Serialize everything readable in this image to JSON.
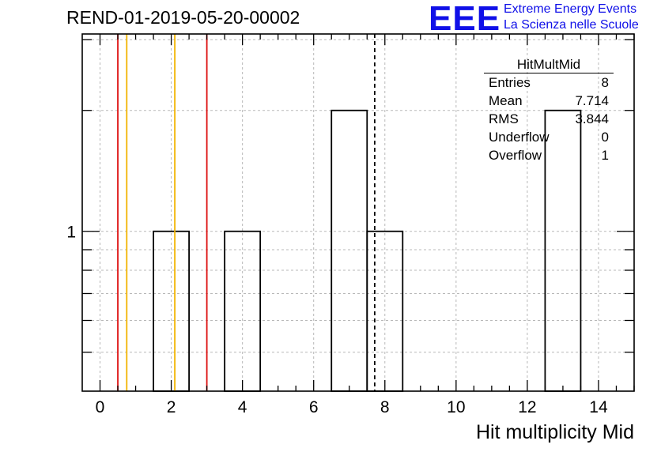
{
  "title": "REND-01-2019-05-20-00002",
  "logo": {
    "mark": "EEE",
    "line1": "Extreme Energy Events",
    "line2": "La Scienza nelle Scuole",
    "color": "#1010e8"
  },
  "stats_box": {
    "title": "HitMultMid",
    "rows": [
      {
        "label": "Entries",
        "value": "8"
      },
      {
        "label": "Mean",
        "value": "7.714"
      },
      {
        "label": "RMS",
        "value": "3.844"
      },
      {
        "label": "Underflow",
        "value": "0"
      },
      {
        "label": "Overflow",
        "value": "1"
      }
    ]
  },
  "chart_data": {
    "type": "bar",
    "histogram": true,
    "xlabel": "Hit multiplicity Mid",
    "ylabel": "",
    "xlim": [
      -0.5,
      15
    ],
    "ylim": [
      0.4,
      3.1
    ],
    "yscale": "log",
    "grid": true,
    "x_ticks": [
      0,
      2,
      4,
      6,
      8,
      10,
      12,
      14
    ],
    "y_tick_labels": [
      {
        "value": 1,
        "label": "1"
      }
    ],
    "bins": [
      {
        "x0": 1.5,
        "x1": 2.5,
        "value": 1
      },
      {
        "x0": 3.5,
        "x1": 4.5,
        "value": 1
      },
      {
        "x0": 6.5,
        "x1": 7.5,
        "value": 2
      },
      {
        "x0": 7.5,
        "x1": 8.5,
        "value": 1
      },
      {
        "x0": 12.5,
        "x1": 13.5,
        "value": 2
      }
    ],
    "vertical_lines": [
      {
        "x": 0.5,
        "color": "#dd1111",
        "style": "solid"
      },
      {
        "x": 0.75,
        "color": "#f2b400",
        "style": "solid"
      },
      {
        "x": 2.1,
        "color": "#f2b400",
        "style": "solid"
      },
      {
        "x": 3.0,
        "color": "#dd1111",
        "style": "solid"
      },
      {
        "x": 7.714,
        "color": "#000000",
        "style": "dashed"
      }
    ],
    "stats_legend_position": "top-right"
  }
}
